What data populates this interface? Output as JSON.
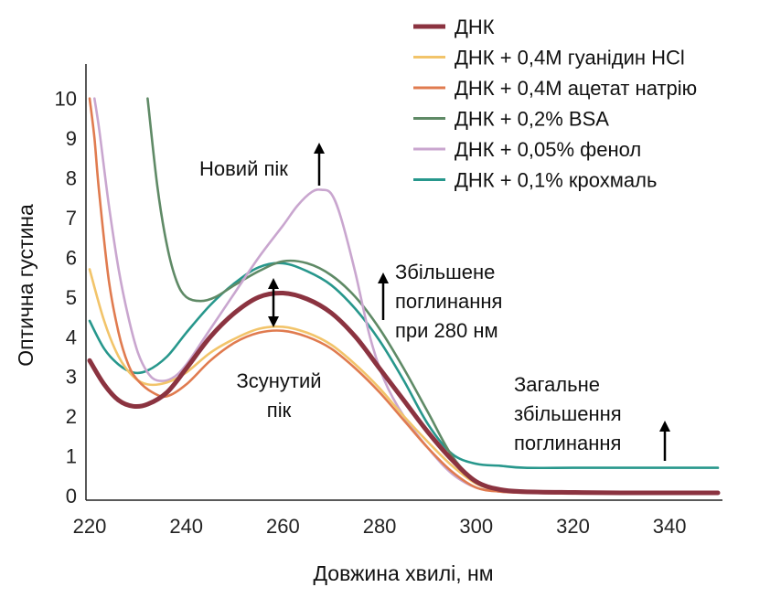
{
  "chart_data": {
    "type": "line",
    "title": "",
    "xlabel": "Довжина хвилі, нм",
    "ylabel": "Оптична густина",
    "xlim": [
      220,
      350
    ],
    "ylim": [
      0,
      10.5
    ],
    "xticks": [
      "220",
      "240",
      "260",
      "280",
      "300",
      "320",
      "340"
    ],
    "yticks": [
      "0",
      "1",
      "2",
      "3",
      "4",
      "5",
      "6",
      "7",
      "8",
      "9",
      "10"
    ],
    "grid": false,
    "legend_position": "top-right",
    "series": [
      {
        "name": "ДНК",
        "color": "#8b3340",
        "x": [
          220,
          223,
          226,
          229,
          232,
          236,
          240,
          245,
          250,
          255,
          260,
          265,
          270,
          275,
          280,
          285,
          290,
          295,
          300,
          305,
          310,
          320,
          330,
          340,
          350
        ],
        "y": [
          3.4,
          2.8,
          2.4,
          2.25,
          2.3,
          2.6,
          3.2,
          4.0,
          4.6,
          5.0,
          5.1,
          4.95,
          4.6,
          4.0,
          3.2,
          2.4,
          1.6,
          0.9,
          0.35,
          0.15,
          0.1,
          0.08,
          0.07,
          0.07,
          0.07
        ]
      },
      {
        "name": "ДНК + 0,4М гуанідин HCl",
        "color": "#f2c46a",
        "x": [
          220,
          223,
          226,
          229,
          232,
          236,
          240,
          245,
          250,
          255,
          260,
          265,
          270,
          275,
          280,
          285,
          290,
          295,
          300,
          305,
          310,
          320,
          330,
          340,
          350
        ],
        "y": [
          5.7,
          4.4,
          3.5,
          3.0,
          2.8,
          2.85,
          3.1,
          3.6,
          3.95,
          4.2,
          4.25,
          4.1,
          3.8,
          3.3,
          2.7,
          2.0,
          1.35,
          0.75,
          0.3,
          0.12,
          0.08,
          0.06,
          0.05,
          0.05,
          0.05
        ]
      },
      {
        "name": "ДНК + 0,4М ацетат натрію",
        "color": "#e07b4f",
        "x": [
          220,
          221,
          222,
          224,
          226,
          228,
          230,
          233,
          236,
          240,
          245,
          250,
          255,
          260,
          265,
          270,
          275,
          280,
          285,
          290,
          295,
          300,
          305,
          310,
          320,
          330,
          340,
          350
        ],
        "y": [
          10.0,
          9.0,
          7.6,
          5.4,
          4.1,
          3.3,
          2.9,
          2.6,
          2.5,
          2.8,
          3.4,
          3.85,
          4.1,
          4.15,
          4.0,
          3.7,
          3.2,
          2.6,
          1.9,
          1.2,
          0.6,
          0.2,
          0.1,
          0.07,
          0.05,
          0.05,
          0.05,
          0.05
        ]
      },
      {
        "name": "ДНК + 0,2% BSA",
        "color": "#5f8a66",
        "x": [
          232,
          234,
          236,
          238,
          240,
          243,
          246,
          250,
          255,
          260,
          265,
          270,
          275,
          280,
          285,
          290,
          295,
          300,
          305,
          310,
          320,
          330,
          340,
          350
        ],
        "y": [
          10.0,
          7.8,
          6.3,
          5.4,
          5.0,
          4.9,
          5.0,
          5.3,
          5.65,
          5.9,
          5.85,
          5.55,
          5.0,
          4.2,
          3.2,
          2.1,
          1.0,
          0.35,
          0.15,
          0.1,
          0.08,
          0.08,
          0.08,
          0.08
        ]
      },
      {
        "name": "ДНК + 0,05% фенол",
        "color": "#c9a6cf",
        "x": [
          221,
          222,
          224,
          226,
          228,
          230,
          232,
          234,
          237,
          240,
          245,
          250,
          255,
          260,
          263,
          266,
          268,
          270,
          272,
          275,
          278,
          281,
          285,
          290,
          295,
          300,
          305,
          310,
          320,
          330,
          340,
          350
        ],
        "y": [
          10.0,
          9.2,
          7.3,
          5.7,
          4.5,
          3.6,
          3.1,
          2.9,
          2.95,
          3.3,
          4.2,
          5.1,
          6.0,
          6.8,
          7.3,
          7.65,
          7.7,
          7.6,
          7.0,
          5.6,
          4.0,
          2.9,
          2.0,
          1.2,
          0.55,
          0.2,
          0.1,
          0.07,
          0.05,
          0.05,
          0.05,
          0.05
        ]
      },
      {
        "name": "ДНК + 0,1% крохмаль",
        "color": "#27978c",
        "x": [
          220,
          223,
          226,
          229,
          232,
          236,
          240,
          245,
          250,
          255,
          260,
          265,
          270,
          275,
          280,
          285,
          290,
          295,
          300,
          305,
          310,
          320,
          330,
          340,
          350
        ],
        "y": [
          4.4,
          3.7,
          3.3,
          3.1,
          3.15,
          3.5,
          4.1,
          4.8,
          5.35,
          5.75,
          5.85,
          5.65,
          5.3,
          4.7,
          3.9,
          2.9,
          1.8,
          1.05,
          0.8,
          0.75,
          0.7,
          0.7,
          0.7,
          0.7,
          0.7
        ]
      }
    ],
    "annotations": [
      {
        "id": "new-peak",
        "text": "Новий пік"
      },
      {
        "id": "increased-280",
        "lines": [
          "Збільшене",
          "поглинання",
          "при 280 нм"
        ]
      },
      {
        "id": "shifted-peak",
        "lines": [
          "Зсунутий",
          "пік"
        ]
      },
      {
        "id": "general-increase",
        "lines": [
          "Загальне",
          "збільшення",
          "поглинання"
        ]
      }
    ]
  }
}
